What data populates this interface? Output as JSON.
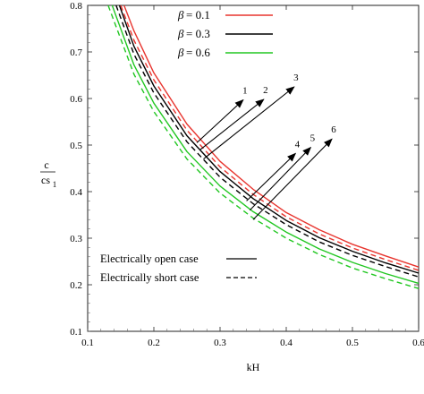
{
  "chart_data": {
    "type": "line",
    "xlabel": "kH",
    "ylabel_numerator": "c",
    "ylabel_denominator": "cs",
    "ylabel_subscript": "1",
    "xlim": [
      0.1,
      0.6
    ],
    "ylim": [
      0.1,
      0.8
    ],
    "x_ticks": [
      "0.1",
      "0.2",
      "0.3",
      "0.4",
      "0.5",
      "0.6"
    ],
    "y_ticks": [
      "0.1",
      "0.2",
      "0.3",
      "0.4",
      "0.5",
      "0.6",
      "0.7",
      "0.8"
    ],
    "grid": false,
    "legend_position": "top-right",
    "legend_symbol": "β",
    "series": [
      {
        "name": "β = 0.1",
        "case": "open",
        "color": "#e8352f",
        "dash": "solid",
        "x": [
          0.155,
          0.17,
          0.2,
          0.25,
          0.3,
          0.35,
          0.4,
          0.45,
          0.5,
          0.55,
          0.6
        ],
        "y": [
          0.8,
          0.745,
          0.655,
          0.545,
          0.465,
          0.405,
          0.355,
          0.318,
          0.287,
          0.262,
          0.238
        ]
      },
      {
        "name": "β = 0.1",
        "case": "short",
        "color": "#e8352f",
        "dash": "dashed",
        "x": [
          0.15,
          0.17,
          0.2,
          0.25,
          0.3,
          0.35,
          0.4,
          0.45,
          0.5,
          0.55,
          0.6
        ],
        "y": [
          0.8,
          0.725,
          0.64,
          0.532,
          0.453,
          0.394,
          0.346,
          0.309,
          0.279,
          0.254,
          0.231
        ]
      },
      {
        "name": "β = 0.3",
        "case": "open",
        "color": "#000000",
        "dash": "solid",
        "x": [
          0.148,
          0.17,
          0.2,
          0.25,
          0.3,
          0.35,
          0.4,
          0.45,
          0.5,
          0.55,
          0.6
        ],
        "y": [
          0.8,
          0.712,
          0.627,
          0.52,
          0.443,
          0.385,
          0.338,
          0.301,
          0.272,
          0.247,
          0.225
        ]
      },
      {
        "name": "β = 0.3",
        "case": "short",
        "color": "#000000",
        "dash": "dashed",
        "x": [
          0.143,
          0.17,
          0.2,
          0.25,
          0.3,
          0.35,
          0.4,
          0.45,
          0.5,
          0.55,
          0.6
        ],
        "y": [
          0.8,
          0.695,
          0.612,
          0.507,
          0.431,
          0.374,
          0.329,
          0.292,
          0.263,
          0.239,
          0.217
        ]
      },
      {
        "name": "β = 0.6",
        "case": "open",
        "color": "#22c722",
        "dash": "solid",
        "x": [
          0.137,
          0.17,
          0.2,
          0.25,
          0.3,
          0.35,
          0.4,
          0.45,
          0.5,
          0.55,
          0.6
        ],
        "y": [
          0.8,
          0.672,
          0.59,
          0.486,
          0.412,
          0.357,
          0.313,
          0.277,
          0.248,
          0.224,
          0.203
        ]
      },
      {
        "name": "β = 0.6",
        "case": "short",
        "color": "#22c722",
        "dash": "dashed",
        "x": [
          0.131,
          0.17,
          0.2,
          0.25,
          0.3,
          0.35,
          0.4,
          0.45,
          0.5,
          0.55,
          0.6
        ],
        "y": [
          0.8,
          0.652,
          0.572,
          0.47,
          0.397,
          0.343,
          0.3,
          0.265,
          0.236,
          0.213,
          0.192
        ]
      }
    ],
    "legend": [
      {
        "prefix": "β",
        "label": " = 0.1",
        "color": "#e8352f"
      },
      {
        "prefix": "β",
        "label": " = 0.3",
        "color": "#000000"
      },
      {
        "prefix": "β",
        "label": " = 0.6",
        "color": "#22c722"
      }
    ],
    "case_legend": [
      {
        "label": "Electrically open case",
        "dash": "solid"
      },
      {
        "label": "Electrically short case",
        "dash": "dashed"
      }
    ],
    "arrows": [
      {
        "label": "1",
        "from": [
          0.265,
          0.505
        ],
        "to": [
          0.335,
          0.597
        ]
      },
      {
        "label": "2",
        "from": [
          0.27,
          0.49
        ],
        "to": [
          0.366,
          0.598
        ]
      },
      {
        "label": "3",
        "from": [
          0.275,
          0.47
        ],
        "to": [
          0.412,
          0.625
        ]
      },
      {
        "label": "4",
        "from": [
          0.34,
          0.38
        ],
        "to": [
          0.414,
          0.482
        ]
      },
      {
        "label": "5",
        "from": [
          0.345,
          0.36
        ],
        "to": [
          0.437,
          0.495
        ]
      },
      {
        "label": "6",
        "from": [
          0.35,
          0.34
        ],
        "to": [
          0.469,
          0.513
        ]
      }
    ]
  }
}
